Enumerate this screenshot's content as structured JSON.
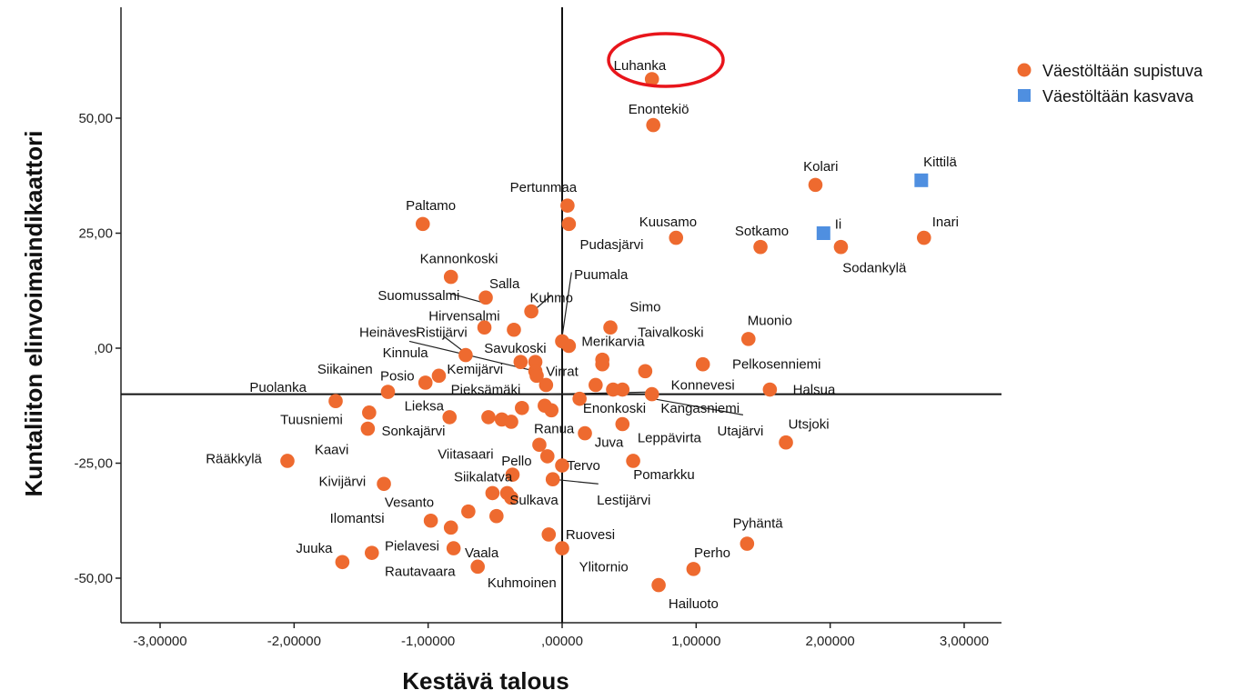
{
  "chart_data": {
    "type": "scatter",
    "xlabel": "Kestävä talous",
    "ylabel": "Kuntaliiton elinvoimaindikaattori",
    "xlim": [
      -3.3,
      3.3
    ],
    "ylim": [
      -60,
      75
    ],
    "xticks": [
      -3,
      -2,
      -1,
      0,
      1,
      2,
      3
    ],
    "xtick_labels": [
      "-3,00000",
      "-2,00000",
      "-1,00000",
      ",00000",
      "1,00000",
      "2,00000",
      "3,00000"
    ],
    "yticks": [
      -50,
      -25,
      0,
      25,
      50
    ],
    "ytick_labels": [
      "-50,00",
      "-25,00",
      ",00",
      "25,00",
      "50,00"
    ],
    "reference_lines": {
      "x": 0,
      "y": -10
    },
    "legend_position": "top-right",
    "highlight": {
      "label": "Luhanka",
      "shape": "ellipse",
      "color": "#e8151b"
    },
    "series": [
      {
        "name": "Väestöltään supistuva",
        "marker": "circle",
        "color": "#ee6a2f",
        "points": [
          {
            "x": 0.67,
            "y": 58.5,
            "label": "Luhanka"
          },
          {
            "x": 0.68,
            "y": 48.5,
            "label": "Enontekiö"
          },
          {
            "x": 1.89,
            "y": 35.5,
            "label": "Kolari"
          },
          {
            "x": 0.04,
            "y": 31.0,
            "label": "Pertunmaa"
          },
          {
            "x": -1.04,
            "y": 27.0,
            "label": "Paltamo"
          },
          {
            "x": 0.05,
            "y": 27.0,
            "label": "Pudasjärvi"
          },
          {
            "x": 0.85,
            "y": 24.0,
            "label": "Kuusamo"
          },
          {
            "x": 1.48,
            "y": 22.0,
            "label": "Sotkamo"
          },
          {
            "x": 2.08,
            "y": 22.0,
            "label": "Sodankylä"
          },
          {
            "x": 2.7,
            "y": 24.0,
            "label": "Inari"
          },
          {
            "x": -0.83,
            "y": 15.5,
            "label": "Kannonkoski"
          },
          {
            "x": -0.57,
            "y": 11.0,
            "label": "Salla"
          },
          {
            "x": -0.23,
            "y": 8.0,
            "label": "Kuhmo"
          },
          {
            "x": 0.0,
            "y": 1.5,
            "label": "Puumala"
          },
          {
            "x": -0.58,
            "y": 4.5,
            "label": "Suomussalmi"
          },
          {
            "x": -0.36,
            "y": 4.0,
            "label": "Hirvensalmi"
          },
          {
            "x": 0.36,
            "y": 4.5,
            "label": "Simo"
          },
          {
            "x": 0.05,
            "y": 0.5,
            "label": "Merikarvia"
          },
          {
            "x": 1.39,
            "y": 2.0,
            "label": "Muonio"
          },
          {
            "x": -0.72,
            "y": -1.5,
            "label": "Heinävesi"
          },
          {
            "x": -0.31,
            "y": -3.0,
            "label": "Ristijärvi"
          },
          {
            "x": -0.2,
            "y": -3.0,
            "label": "Savukoski"
          },
          {
            "x": 0.3,
            "y": -2.5,
            "label": "Taivalkoski"
          },
          {
            "x": 0.3,
            "y": -3.5,
            "label": "Taivalkoski 2"
          },
          {
            "x": 1.05,
            "y": -3.5,
            "label": "Pelkosenniemi"
          },
          {
            "x": -1.02,
            "y": -7.5,
            "label": "Kinnula"
          },
          {
            "x": -0.92,
            "y": -6.0,
            "label": "Siikainen"
          },
          {
            "x": -0.2,
            "y": -5.0,
            "label": "Kemijärvi"
          },
          {
            "x": -0.19,
            "y": -6.0,
            "label": "Virrat"
          },
          {
            "x": -0.12,
            "y": -8.0,
            "label": "Pieksämäki"
          },
          {
            "x": 0.25,
            "y": -8.0,
            "label": "Konnevesi 1"
          },
          {
            "x": 0.38,
            "y": -9.0,
            "label": "Konnevesi 2"
          },
          {
            "x": 0.45,
            "y": -9.0,
            "label": "Konnevesi 3"
          },
          {
            "x": 0.62,
            "y": -5.0,
            "label": "Konnevesi"
          },
          {
            "x": 0.67,
            "y": -10.0,
            "label": "Kangasniemi 1"
          },
          {
            "x": 1.55,
            "y": -9.0,
            "label": "Halsua"
          },
          {
            "x": -1.3,
            "y": -9.5,
            "label": "Posio"
          },
          {
            "x": -1.69,
            "y": -11.5,
            "label": "Puolanka"
          },
          {
            "x": -1.44,
            "y": -14.0,
            "label": "Tuusniemi"
          },
          {
            "x": -1.45,
            "y": -17.5,
            "label": "Sonkajärvi"
          },
          {
            "x": -0.84,
            "y": -15.0,
            "label": "Lieksa"
          },
          {
            "x": -0.55,
            "y": -15.0,
            "label": "Pieksämäki 2"
          },
          {
            "x": -0.45,
            "y": -15.5,
            "label": "Pieksämäki 3"
          },
          {
            "x": -0.38,
            "y": -16.0,
            "label": "Pieksämäki 4"
          },
          {
            "x": -0.3,
            "y": -13.0,
            "label": "Pieksämäki 5"
          },
          {
            "x": -0.13,
            "y": -12.5,
            "label": "Enonkoski 1"
          },
          {
            "x": -0.08,
            "y": -13.5,
            "label": "Enonkoski 2"
          },
          {
            "x": 0.13,
            "y": -11.0,
            "label": "Enonkoski"
          },
          {
            "x": 0.45,
            "y": -16.5,
            "label": "Juva"
          },
          {
            "x": 0.17,
            "y": -18.5,
            "label": "Ranua"
          },
          {
            "x": 1.67,
            "y": -20.5,
            "label": "Utsjoki"
          },
          {
            "x": -2.05,
            "y": -24.5,
            "label": "Rääkkylä"
          },
          {
            "x": -0.17,
            "y": -21.0,
            "label": "Viitasaari"
          },
          {
            "x": -0.11,
            "y": -23.5,
            "label": "Pello"
          },
          {
            "x": 0.0,
            "y": -25.5,
            "label": "Tervo"
          },
          {
            "x": 0.53,
            "y": -24.5,
            "label": "Pomarkku"
          },
          {
            "x": -0.37,
            "y": -27.5,
            "label": "Siikalatva"
          },
          {
            "x": -0.07,
            "y": -28.5,
            "label": "Lestijärvi"
          },
          {
            "x": -1.33,
            "y": -29.5,
            "label": "Kivijärvi"
          },
          {
            "x": -0.52,
            "y": -31.5,
            "label": "Vesanto"
          },
          {
            "x": -0.41,
            "y": -31.5,
            "label": "Sulkava 1"
          },
          {
            "x": -0.38,
            "y": -32.5,
            "label": "Sulkava"
          },
          {
            "x": -0.7,
            "y": -35.5,
            "label": "Vesanto 2"
          },
          {
            "x": -0.49,
            "y": -36.5,
            "label": "Vesanto 3"
          },
          {
            "x": -0.98,
            "y": -37.5,
            "label": "Ilomantsi"
          },
          {
            "x": -0.83,
            "y": -39.0,
            "label": "Ilomantsi 2"
          },
          {
            "x": -0.1,
            "y": -40.5,
            "label": "Ruovesi"
          },
          {
            "x": 0.0,
            "y": -43.5,
            "label": "Ylitornio"
          },
          {
            "x": 1.38,
            "y": -42.5,
            "label": "Pyhäntä"
          },
          {
            "x": -0.81,
            "y": -43.5,
            "label": "Vaala"
          },
          {
            "x": -1.42,
            "y": -44.5,
            "label": "Pielavesi"
          },
          {
            "x": -1.64,
            "y": -46.5,
            "label": "Juuka"
          },
          {
            "x": -0.63,
            "y": -47.5,
            "label": "Kuhmoinen"
          },
          {
            "x": 0.98,
            "y": -48.0,
            "label": "Perho"
          },
          {
            "x": 0.72,
            "y": -51.5,
            "label": "Hailuoto"
          }
        ]
      },
      {
        "name": "Väestöltään kasvava",
        "marker": "square",
        "color": "#4f8fe0",
        "points": [
          {
            "x": 2.68,
            "y": 36.5,
            "label": "Kittilä"
          },
          {
            "x": 1.95,
            "y": 25.0,
            "label": "Ii"
          }
        ]
      }
    ],
    "text_labels": [
      {
        "text": "Luhanka",
        "x": 0.58,
        "y": 61.5
      },
      {
        "text": "Enontekiö",
        "x": 0.72,
        "y": 52.0
      },
      {
        "text": "Kolari",
        "x": 1.93,
        "y": 39.5
      },
      {
        "text": "Kittilä",
        "x": 2.82,
        "y": 40.5
      },
      {
        "text": "Pertunmaa",
        "x": -0.14,
        "y": 35.0
      },
      {
        "text": "Paltamo",
        "x": -0.98,
        "y": 31.0
      },
      {
        "text": "Kuusamo",
        "x": 0.79,
        "y": 27.5
      },
      {
        "text": "Sotkamo",
        "x": 1.49,
        "y": 25.5
      },
      {
        "text": "Ii",
        "x": 2.06,
        "y": 27.0
      },
      {
        "text": "Inari",
        "x": 2.86,
        "y": 27.5
      },
      {
        "text": "Pudasjärvi",
        "x": 0.37,
        "y": 22.5
      },
      {
        "text": "Sodankylä",
        "x": 2.33,
        "y": 17.5
      },
      {
        "text": "Kannonkoski",
        "x": -0.77,
        "y": 19.5
      },
      {
        "text": "Puumala",
        "x": 0.29,
        "y": 16.0
      },
      {
        "text": "Salla",
        "x": -0.43,
        "y": 14.0
      },
      {
        "text": "Suomussalmi",
        "x": -1.07,
        "y": 11.5
      },
      {
        "text": "Kuhmo",
        "x": -0.08,
        "y": 11.0
      },
      {
        "text": "Simo",
        "x": 0.62,
        "y": 9.0
      },
      {
        "text": "Hirvensalmi",
        "x": -0.73,
        "y": 7.0
      },
      {
        "text": "Muonio",
        "x": 1.55,
        "y": 6.0
      },
      {
        "text": "Heinävesi",
        "x": -1.29,
        "y": 3.5
      },
      {
        "text": "Ristijärvi",
        "x": -0.9,
        "y": 3.5
      },
      {
        "text": "Taivalkoski",
        "x": 0.81,
        "y": 3.5
      },
      {
        "text": "Merikarvia",
        "x": 0.38,
        "y": 1.5
      },
      {
        "text": "Savukoski",
        "x": -0.35,
        "y": 0.0
      },
      {
        "text": "Kinnula",
        "x": -1.17,
        "y": -1.0
      },
      {
        "text": "Pelkosenniemi",
        "x": 1.6,
        "y": -3.5
      },
      {
        "text": "Siikainen",
        "x": -1.62,
        "y": -4.5
      },
      {
        "text": "Kemijärvi",
        "x": -0.65,
        "y": -4.5
      },
      {
        "text": "Virrat",
        "x": 0.0,
        "y": -5.0
      },
      {
        "text": "Posio",
        "x": -1.23,
        "y": -6.0
      },
      {
        "text": "Konnevesi",
        "x": 1.05,
        "y": -8.0
      },
      {
        "text": "Puolanka",
        "x": -2.12,
        "y": -8.5
      },
      {
        "text": "Pieksämäki",
        "x": -0.57,
        "y": -9.0
      },
      {
        "text": "Halsua",
        "x": 1.88,
        "y": -9.0
      },
      {
        "text": "Lieksa",
        "x": -1.03,
        "y": -12.5
      },
      {
        "text": "Enonkoski",
        "x": 0.39,
        "y": -13.0
      },
      {
        "text": "Kangasniemi",
        "x": 1.03,
        "y": -13.0
      },
      {
        "text": "Tuusniemi",
        "x": -1.87,
        "y": -15.5
      },
      {
        "text": "Sonkajärvi",
        "x": -1.11,
        "y": -18.0
      },
      {
        "text": "Ranua",
        "x": -0.06,
        "y": -17.5
      },
      {
        "text": "Utsjoki",
        "x": 1.84,
        "y": -16.5
      },
      {
        "text": "Utajärvi",
        "x": 1.33,
        "y": -18.0
      },
      {
        "text": "Leppävirta",
        "x": 0.8,
        "y": -19.5
      },
      {
        "text": "Juva",
        "x": 0.35,
        "y": -20.5
      },
      {
        "text": "Kaavi",
        "x": -1.72,
        "y": -22.0
      },
      {
        "text": "Rääkkylä",
        "x": -2.45,
        "y": -24.0
      },
      {
        "text": "Viitasaari",
        "x": -0.72,
        "y": -23.0
      },
      {
        "text": "Pello",
        "x": -0.34,
        "y": -24.5
      },
      {
        "text": "Tervo",
        "x": 0.16,
        "y": -25.5
      },
      {
        "text": "Pomarkku",
        "x": 0.76,
        "y": -27.5
      },
      {
        "text": "Siikalatva",
        "x": -0.59,
        "y": -28.0
      },
      {
        "text": "Kivijärvi",
        "x": -1.64,
        "y": -29.0
      },
      {
        "text": "Sulkava",
        "x": -0.21,
        "y": -33.0
      },
      {
        "text": "Lestijärvi",
        "x": 0.46,
        "y": -33.0
      },
      {
        "text": "Vesanto",
        "x": -1.14,
        "y": -33.5
      },
      {
        "text": "Ilomantsi",
        "x": -1.53,
        "y": -37.0
      },
      {
        "text": "Ruovesi",
        "x": 0.21,
        "y": -40.5
      },
      {
        "text": "Pyhäntä",
        "x": 1.46,
        "y": -38.0
      },
      {
        "text": "Juuka",
        "x": -1.85,
        "y": -43.5
      },
      {
        "text": "Pielavesi",
        "x": -1.12,
        "y": -43.0
      },
      {
        "text": "Vaala",
        "x": -0.6,
        "y": -44.5
      },
      {
        "text": "Perho",
        "x": 1.12,
        "y": -44.5
      },
      {
        "text": "Rautavaara",
        "x": -1.06,
        "y": -48.5
      },
      {
        "text": "Ylitornio",
        "x": 0.31,
        "y": -47.5
      },
      {
        "text": "Kuhmoinen",
        "x": -0.3,
        "y": -51.0
      },
      {
        "text": "Hailuoto",
        "x": 0.98,
        "y": -55.5
      }
    ],
    "leader_lines": [
      {
        "from": [
          0.07,
          16.5
        ],
        "to": [
          0.0,
          2.5
        ]
      },
      {
        "from": [
          -0.85,
          12.0
        ],
        "to": [
          -0.6,
          10.0
        ]
      },
      {
        "from": [
          -0.08,
          11.5
        ],
        "to": [
          -0.2,
          8.5
        ]
      },
      {
        "from": [
          -0.88,
          2.5
        ],
        "to": [
          -0.7,
          -1.5
        ]
      },
      {
        "from": [
          -1.14,
          1.5
        ],
        "to": [
          -0.2,
          -5.0
        ]
      },
      {
        "from": [
          0.68,
          -11.0
        ],
        "to": [
          1.35,
          -14.5
        ]
      },
      {
        "from": [
          0.7,
          -9.5
        ],
        "to": [
          -0.1,
          -10.0
        ]
      },
      {
        "from": [
          -0.07,
          -28.5
        ],
        "to": [
          0.27,
          -29.5
        ]
      }
    ]
  }
}
